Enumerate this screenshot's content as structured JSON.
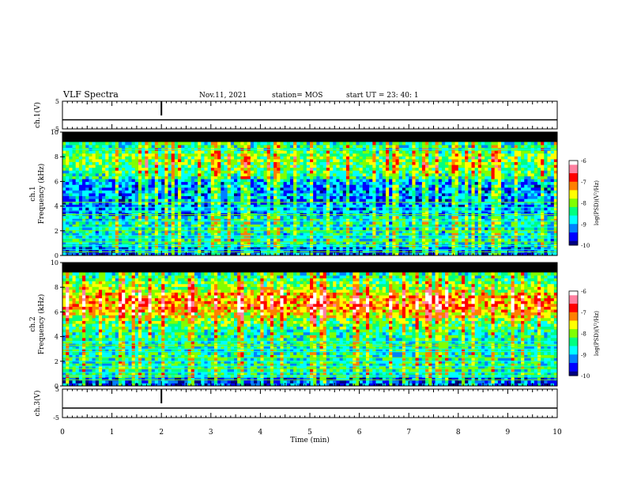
{
  "header": {
    "title": "VLF Spectra",
    "date": "Nov.11, 2021",
    "station": "station= MOS",
    "start_ut": "start  UT =  23: 40: 1"
  },
  "colors": {
    "background": "#ffffff",
    "axis": "#000000",
    "spectrogram_floor": "#000000",
    "colormap": [
      "#00007f",
      "#0000ff",
      "#0080ff",
      "#00ffff",
      "#00ff80",
      "#80ff00",
      "#ffff00",
      "#ff8000",
      "#ff0000",
      "#ff80a0",
      "#ffffff"
    ]
  },
  "chart_data": [
    {
      "type": "line",
      "ylabel": "ch.1(V)",
      "ylim": [
        -5,
        5
      ],
      "yticks": [
        "5",
        "-5"
      ],
      "xlim": [
        0,
        10
      ],
      "series": [
        {
          "x": [
            0,
            10
          ],
          "y": [
            0,
            0
          ]
        }
      ]
    },
    {
      "type": "heatmap",
      "ylabel": "ch.1\nFrequency (kHz)",
      "ylim": [
        0,
        10
      ],
      "yticks": [
        "0",
        "2",
        "4",
        "6",
        "8",
        "10"
      ],
      "xlim": [
        0,
        10
      ],
      "colorbar": {
        "label": "log(PSD)(V²/Hz)",
        "range": [
          -10,
          -6
        ],
        "ticks": [
          "-6",
          "-7",
          "-8",
          "-9",
          "-10"
        ]
      },
      "tone_lines_khz": [
        0.3,
        0.5,
        0.8,
        1.1,
        1.4,
        1.6,
        2.0,
        2.3,
        2.8,
        3.3,
        3.6,
        3.9,
        4.3,
        8.6
      ]
    },
    {
      "type": "heatmap",
      "ylabel": "ch.2\nFrequency (kHz)",
      "ylim": [
        0,
        10
      ],
      "yticks": [
        "0",
        "2",
        "4",
        "6",
        "8",
        "10"
      ],
      "xlim": [
        0,
        10
      ],
      "colorbar": {
        "label": "log(PSD)(V²/Hz)",
        "range": [
          -10,
          -6
        ],
        "ticks": [
          "-6",
          "-7",
          "-8",
          "-9",
          "-10"
        ]
      },
      "tone_lines_khz": [
        0.5,
        0.8,
        1.1,
        1.4,
        1.6,
        2.0,
        2.3,
        2.8,
        3.0,
        3.3,
        3.6
      ]
    },
    {
      "type": "line",
      "ylabel": "ch.3(V)",
      "ylim": [
        -5,
        5
      ],
      "yticks": [
        "5",
        "-5"
      ],
      "xlim": [
        0,
        10
      ],
      "xlabel": "Time (min)",
      "xticks": [
        "0",
        "1",
        "2",
        "3",
        "4",
        "5",
        "6",
        "7",
        "8",
        "9",
        "10"
      ],
      "series": [
        {
          "x": [
            0,
            10
          ],
          "y": [
            0,
            0
          ]
        }
      ]
    }
  ]
}
